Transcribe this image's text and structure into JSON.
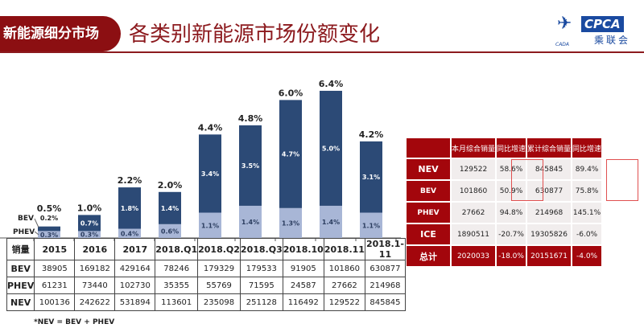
{
  "header": {
    "section": "新能源细分市场",
    "title": "各类别新能源市场份额变化",
    "logo_text": "CPCA",
    "logo_cn": "乘联会",
    "logo_sub": "CADA"
  },
  "chart_data": {
    "type": "bar",
    "stacked": true,
    "categories": [
      "2015",
      "2016",
      "2017",
      "2018.Q1",
      "2018.Q2",
      "2018.Q3",
      "2018.10",
      "2018.11",
      "2018.1-11"
    ],
    "series": [
      {
        "name": "PHEV",
        "values": [
          0.3,
          0.3,
          0.4,
          0.6,
          1.1,
          1.4,
          1.3,
          1.4,
          1.1
        ],
        "labels": [
          "0.3%",
          "0.3%",
          "0.4%",
          "0.6%",
          "1.1%",
          "1.4%",
          "1.3%",
          "1.4%",
          "1.1%"
        ],
        "color": "#a8b6d6"
      },
      {
        "name": "BEV",
        "values": [
          0.2,
          0.7,
          1.8,
          1.4,
          3.4,
          3.5,
          4.7,
          5.0,
          3.1
        ],
        "labels": [
          "0.2%",
          "0.7%",
          "1.8%",
          "1.4%",
          "3.4%",
          "3.5%",
          "4.7%",
          "5.0%",
          "3.1%"
        ],
        "color": "#2c4a76"
      }
    ],
    "totals": [
      "0.5%",
      "1.0%",
      "2.2%",
      "2.0%",
      "4.4%",
      "4.8%",
      "6.0%",
      "6.4%",
      "4.2%"
    ],
    "ylim": [
      0,
      6.4
    ]
  },
  "volume_table": {
    "header": [
      "销量",
      "2015",
      "2016",
      "2017",
      "2018.Q1",
      "2018.Q2",
      "2018.Q3",
      "2018.10",
      "2018.11",
      "2018.1-11"
    ],
    "rows": [
      [
        "BEV",
        "38905",
        "169182",
        "429164",
        "78246",
        "179329",
        "179533",
        "91905",
        "101860",
        "630877"
      ],
      [
        "PHEV",
        "61231",
        "73440",
        "102730",
        "35355",
        "55769",
        "71595",
        "24587",
        "27662",
        "214968"
      ],
      [
        "NEV",
        "100136",
        "242622",
        "531894",
        "113601",
        "235098",
        "251128",
        "116492",
        "129522",
        "845845"
      ]
    ]
  },
  "note": "*NEV = BEV + PHEV",
  "summary_table": {
    "header": [
      "",
      "本月综合销量",
      "同比增速",
      "累计综合销量",
      "同比增速"
    ],
    "rows": [
      [
        "NEV",
        "129522",
        "58.6%",
        "845845",
        "89.4%"
      ],
      [
        "BEV",
        "101860",
        "50.9%",
        "630877",
        "75.8%"
      ],
      [
        "PHEV",
        "27662",
        "94.8%",
        "214968",
        "145.1%"
      ],
      [
        "ICE",
        "1890511",
        "-20.7%",
        "19305826",
        "-6.0%"
      ],
      [
        "总计",
        "2020033",
        "-18.0%",
        "20151671",
        "-4.0%"
      ]
    ]
  }
}
